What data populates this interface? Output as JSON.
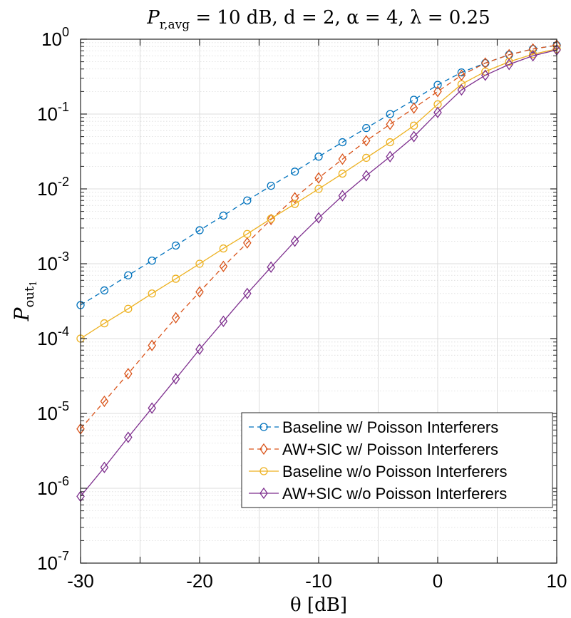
{
  "chart_data": {
    "type": "line",
    "title": "P_r,avg = 10 dB,  d = 2,  α = 4, λ = 0.25",
    "title_parts": {
      "p": "P",
      "p_sub": "r,avg",
      "rest": " = 10 dB,  d = 2,  α = 4, λ = 0.25"
    },
    "xlabel": "θ [dB]",
    "ylabel": "P_out1",
    "ylabel_parts": {
      "p": "P",
      "sub": "out",
      "subsub": "1"
    },
    "xscale": "linear",
    "yscale": "log",
    "xlim": [
      -30,
      10
    ],
    "ylim": [
      1e-07,
      1
    ],
    "xticks": [
      -30,
      -20,
      -10,
      0,
      10
    ],
    "xtick_labels": [
      "-30",
      "-20",
      "-10",
      "0",
      "10"
    ],
    "yticks": [
      1e-07,
      1e-06,
      1e-05,
      0.0001,
      0.001,
      0.01,
      0.1,
      1
    ],
    "ytick_labels": [
      {
        "base": "10",
        "exp": "-7"
      },
      {
        "base": "10",
        "exp": "-6"
      },
      {
        "base": "10",
        "exp": "-5"
      },
      {
        "base": "10",
        "exp": "-4"
      },
      {
        "base": "10",
        "exp": "-3"
      },
      {
        "base": "10",
        "exp": "-2"
      },
      {
        "base": "10",
        "exp": "-1"
      },
      {
        "base": "10",
        "exp": "0"
      }
    ],
    "grid": true,
    "minor_grid": true,
    "legend_position": "bottom-right",
    "x": [
      -30,
      -28,
      -26,
      -24,
      -22,
      -20,
      -18,
      -16,
      -14,
      -12,
      -10,
      -8,
      -6,
      -4,
      -2,
      0,
      2,
      4,
      6,
      8,
      10
    ],
    "series": [
      {
        "name": "Baseline w/ Poisson Interferers",
        "color": "#0072BD",
        "line_style": "dashed",
        "marker": "circle",
        "values": [
          0.00028,
          0.00044,
          0.0007,
          0.0011,
          0.00175,
          0.0028,
          0.0044,
          0.007,
          0.011,
          0.017,
          0.027,
          0.042,
          0.065,
          0.1,
          0.155,
          0.245,
          0.36,
          0.48,
          0.62,
          0.74,
          0.83
        ]
      },
      {
        "name": "AW+SIC w/ Poisson Interferers",
        "color": "#D95319",
        "line_style": "dashed",
        "marker": "diamond",
        "values": [
          6.2e-06,
          1.45e-05,
          3.4e-05,
          8.1e-05,
          0.00019,
          0.00042,
          0.00092,
          0.0019,
          0.0039,
          0.0076,
          0.014,
          0.025,
          0.044,
          0.073,
          0.12,
          0.2,
          0.33,
          0.48,
          0.62,
          0.74,
          0.83
        ]
      },
      {
        "name": "Baseline w/o Poisson Interferers",
        "color": "#EDB120",
        "line_style": "solid",
        "marker": "circle",
        "values": [
          0.0001,
          0.00016,
          0.00025,
          0.0004,
          0.00063,
          0.001,
          0.0016,
          0.0025,
          0.004,
          0.0063,
          0.01,
          0.016,
          0.026,
          0.042,
          0.07,
          0.135,
          0.25,
          0.37,
          0.5,
          0.63,
          0.74
        ]
      },
      {
        "name": "AW+SIC w/o Poisson Interferers",
        "color": "#7E2F8E",
        "line_style": "solid",
        "marker": "diamond",
        "values": [
          7.8e-07,
          1.9e-06,
          4.8e-06,
          1.18e-05,
          2.9e-05,
          7.2e-05,
          0.00017,
          0.0004,
          0.0009,
          0.002,
          0.0041,
          0.0081,
          0.015,
          0.027,
          0.05,
          0.105,
          0.21,
          0.33,
          0.46,
          0.6,
          0.72
        ]
      }
    ]
  }
}
